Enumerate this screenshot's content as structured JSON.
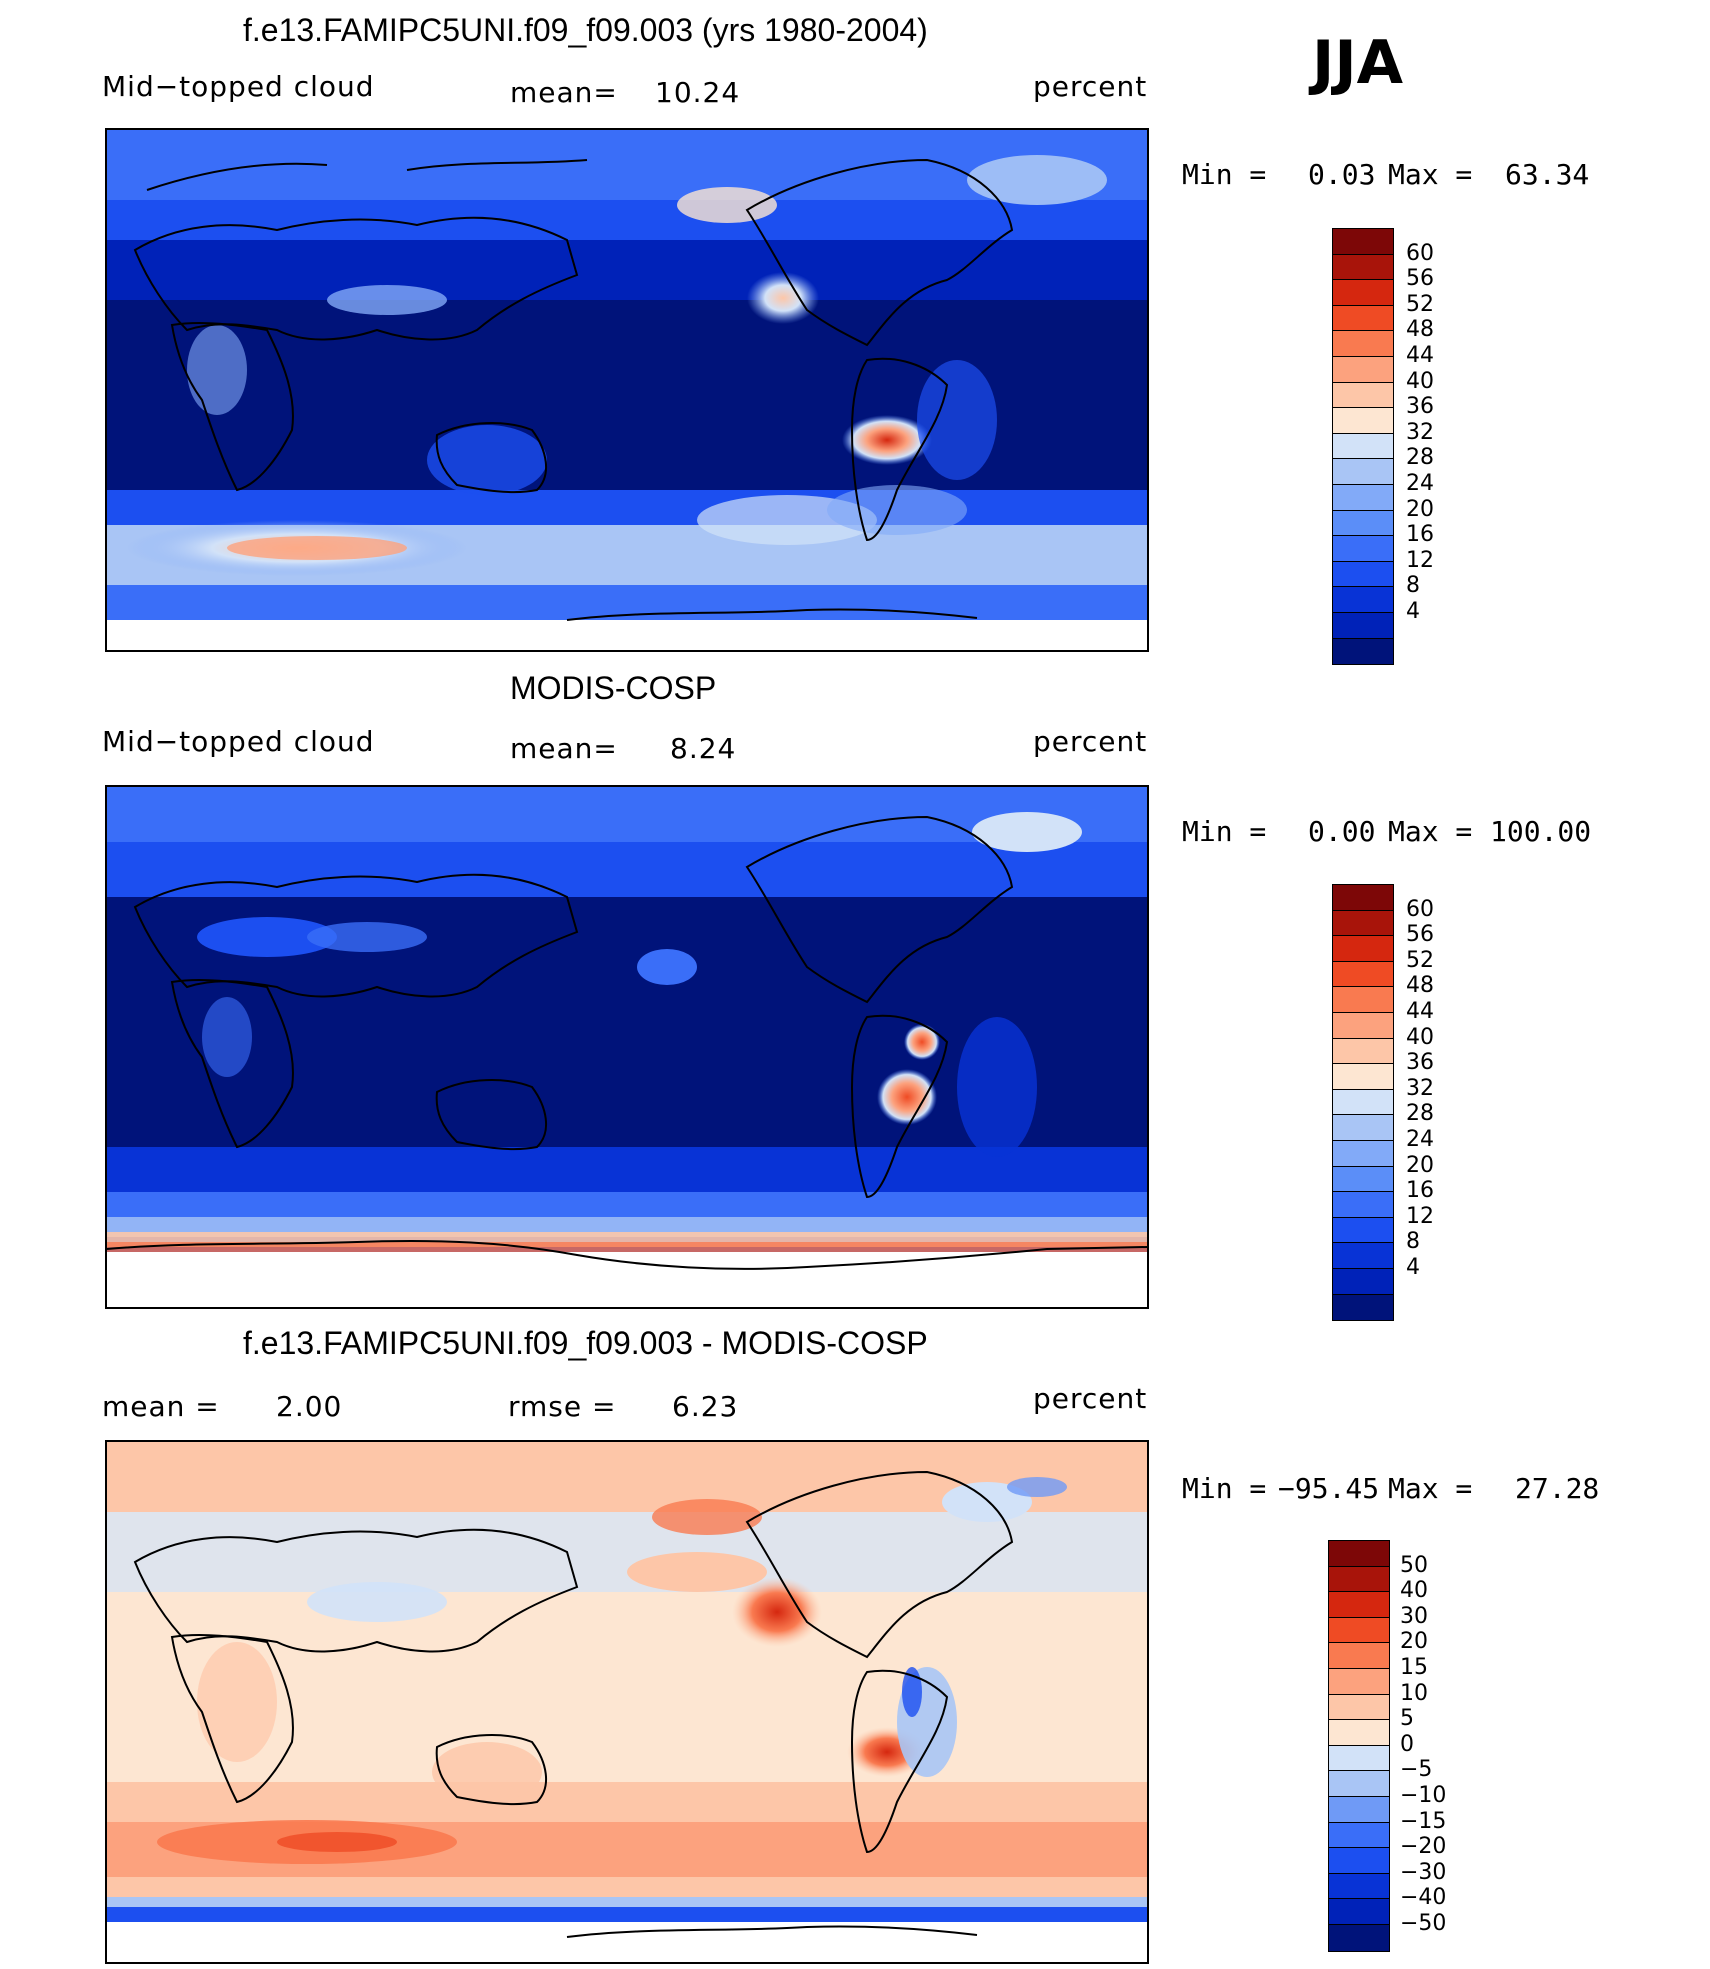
{
  "season": "JJA",
  "colors": {
    "scale": [
      "#00137a",
      "#0022b8",
      "#0833d6",
      "#1c4ff0",
      "#3a6ef8",
      "#5b8ef8",
      "#82aaf8",
      "#a9c5f5",
      "#d2e2f8",
      "#fde6d2",
      "#fdc6a8",
      "#fca27e",
      "#f97a50",
      "#ef4b24",
      "#d5270f",
      "#a8140a",
      "#7d0707"
    ],
    "diff": [
      "#00137a",
      "#0022b8",
      "#0833d6",
      "#1c4ff0",
      "#3a6ef8",
      "#6f9af6",
      "#a9c5f5",
      "#d2e2f8",
      "#fde6d2",
      "#fdc6a8",
      "#fca27e",
      "#f97a50",
      "#ef4b24",
      "#d5270f",
      "#a8140a",
      "#7d0707"
    ]
  },
  "panels": [
    {
      "title": "f.e13.FAMIPC5UNI.f09_f09.003 (yrs 1980-2004)",
      "left_label": "Mid−topped  cloud",
      "center_label": "mean=",
      "center_value": "10.24",
      "right_label": "percent",
      "min_label": "Min  =",
      "min_value": "0.03",
      "max_label": "Max  =",
      "max_value": "63.34",
      "colorbar_ticks": [
        "60",
        "56",
        "52",
        "48",
        "44",
        "40",
        "36",
        "32",
        "28",
        "24",
        "20",
        "16",
        "12",
        "8",
        "4"
      ]
    },
    {
      "title": "MODIS-COSP",
      "left_label": "Mid−topped  cloud",
      "center_label": "mean=",
      "center_value": "8.24",
      "right_label": "percent",
      "min_label": "Min  =",
      "min_value": "0.00",
      "max_label": "Max  =",
      "max_value": "100.00",
      "colorbar_ticks": [
        "60",
        "56",
        "52",
        "48",
        "44",
        "40",
        "36",
        "32",
        "28",
        "24",
        "20",
        "16",
        "12",
        "8",
        "4"
      ]
    },
    {
      "title": "f.e13.FAMIPC5UNI.f09_f09.003 - MODIS-COSP",
      "left_label": "mean  =",
      "left_value": "2.00",
      "center_label": "rmse  =",
      "center_value": "6.23",
      "right_label": "percent",
      "min_label": "Min  =",
      "min_value": "−95.45",
      "max_label": "Max  =",
      "max_value": "27.28",
      "colorbar_ticks": [
        "50",
        "40",
        "30",
        "20",
        "15",
        "10",
        "5",
        "0",
        "−5",
        "−10",
        "−15",
        "−20",
        "−30",
        "−40",
        "−50"
      ]
    }
  ]
}
